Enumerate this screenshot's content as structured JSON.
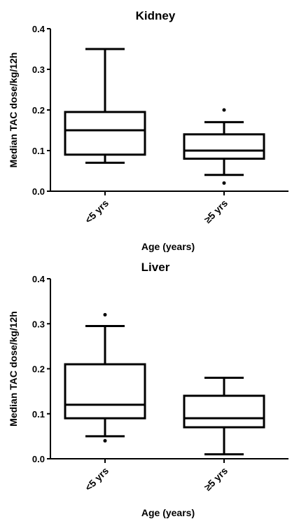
{
  "chart_data": [
    {
      "type": "box",
      "title": "Kidney",
      "x_label": "Age (years)",
      "y_label": "Median TAC dose/kg/12h",
      "categories": [
        "<5 yrs",
        "≥5 yrs"
      ],
      "whisker_low": [
        0.07,
        0.04
      ],
      "q1": [
        0.09,
        0.08
      ],
      "median": [
        0.15,
        0.1
      ],
      "q3": [
        0.195,
        0.14
      ],
      "whisker_high": [
        0.35,
        0.17
      ],
      "outliers": [
        [],
        [
          0.2,
          0.02
        ]
      ],
      "ylim": [
        0,
        0.4
      ],
      "yticks": [
        {
          "value": 0,
          "label": "0.0"
        },
        0.1,
        0.2,
        0.3,
        0.4
      ]
    },
    {
      "type": "box",
      "title": "Liver",
      "x_label": "Age (years)",
      "y_label": "Median TAC dose/kg/12h",
      "categories": [
        "<5 yrs",
        "≥5 yrs"
      ],
      "whisker_low": [
        0.05,
        0.01
      ],
      "q1": [
        0.09,
        0.07
      ],
      "median": [
        0.12,
        0.09
      ],
      "q3": [
        0.21,
        0.14
      ],
      "whisker_high": [
        0.295,
        0.18
      ],
      "outliers": [
        [
          0.32,
          0.04
        ],
        []
      ],
      "ylim": [
        0,
        0.4
      ],
      "yticks": [
        {
          "value": 0,
          "label": "0.0"
        },
        0.1,
        0.2,
        0.3,
        0.4
      ]
    }
  ]
}
